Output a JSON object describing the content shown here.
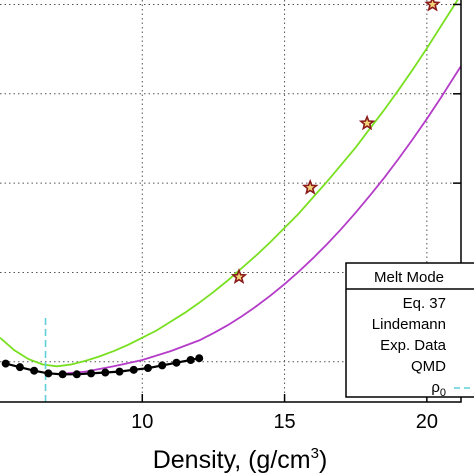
{
  "chart_data": {
    "type": "line",
    "title": "",
    "xlabel_main": "Density, (g/cm",
    "xlabel_sup": "3",
    "xlabel_close": ")",
    "ylabel": "",
    "xlim": [
      5.0,
      21.2
    ],
    "ylim": [
      0.55,
      5.05
    ],
    "x_ticks": [
      10,
      15,
      20
    ],
    "x_tick_labels": [
      "10",
      "15",
      "20"
    ],
    "y_grid": [
      1.0,
      2.0,
      3.0,
      4.0,
      5.0
    ],
    "grid": true,
    "legend": {
      "placement": "bottom-right",
      "title": "Melt Mode",
      "entries": [
        "Eq. 37",
        "Lindemann",
        "Exp. Data",
        "QMD",
        "ρ0"
      ]
    },
    "series": [
      {
        "name": "Eq. 37",
        "kind": "line",
        "color": "#78e020",
        "x": [
          5.0,
          5.5,
          6.0,
          6.5,
          7.0,
          7.5,
          8.0,
          8.5,
          9.0,
          9.5,
          10.0,
          10.5,
          11.0,
          11.5,
          12.0,
          12.5,
          13.0,
          13.5,
          14.0,
          14.5,
          15.0,
          15.5,
          16.0,
          16.5,
          17.0,
          17.5,
          18.0,
          18.5,
          19.0,
          19.5,
          20.0,
          20.5,
          21.0,
          21.2
        ],
        "y": [
          1.27,
          1.13,
          1.03,
          0.97,
          0.95,
          0.97,
          1.01,
          1.06,
          1.12,
          1.19,
          1.27,
          1.35,
          1.45,
          1.55,
          1.66,
          1.78,
          1.91,
          2.05,
          2.19,
          2.34,
          2.5,
          2.66,
          2.84,
          3.02,
          3.21,
          3.4,
          3.61,
          3.82,
          4.04,
          4.27,
          4.51,
          4.76,
          5.01,
          5.11
        ]
      },
      {
        "name": "Lindemann",
        "kind": "line",
        "color": "#b43cc8",
        "x": [
          7.0,
          8.0,
          9.0,
          10.0,
          11.0,
          12.0,
          12.5,
          13.0,
          13.5,
          14.0,
          14.5,
          15.0,
          15.5,
          16.0,
          16.5,
          17.0,
          17.5,
          18.0,
          18.5,
          19.0,
          19.5,
          20.0,
          20.5,
          21.0,
          21.2
        ],
        "y": [
          0.86,
          0.89,
          0.95,
          1.02,
          1.12,
          1.24,
          1.32,
          1.41,
          1.51,
          1.62,
          1.74,
          1.87,
          2.01,
          2.16,
          2.32,
          2.49,
          2.67,
          2.86,
          3.06,
          3.27,
          3.49,
          3.72,
          3.96,
          4.21,
          4.31
        ]
      },
      {
        "name": "Exp. Data",
        "kind": "markers-line",
        "color": "#000000",
        "x": [
          5.2,
          5.7,
          6.2,
          6.7,
          7.2,
          7.7,
          8.2,
          8.7,
          9.2,
          9.7,
          10.2,
          10.7,
          11.2,
          11.7,
          12.0
        ],
        "y": [
          0.98,
          0.94,
          0.9,
          0.87,
          0.86,
          0.86,
          0.87,
          0.88,
          0.89,
          0.91,
          0.93,
          0.96,
          0.99,
          1.02,
          1.04
        ]
      },
      {
        "name": "QMD",
        "kind": "markers",
        "color": "#8b1a1a",
        "x": [
          13.4,
          15.9,
          17.9,
          20.2
        ],
        "y": [
          1.95,
          2.95,
          3.67,
          5.0
        ]
      },
      {
        "name": "ρ0",
        "kind": "vline",
        "color": "#5fd0d8",
        "x": 6.6,
        "y": [
          0.55,
          1.51
        ]
      }
    ]
  }
}
